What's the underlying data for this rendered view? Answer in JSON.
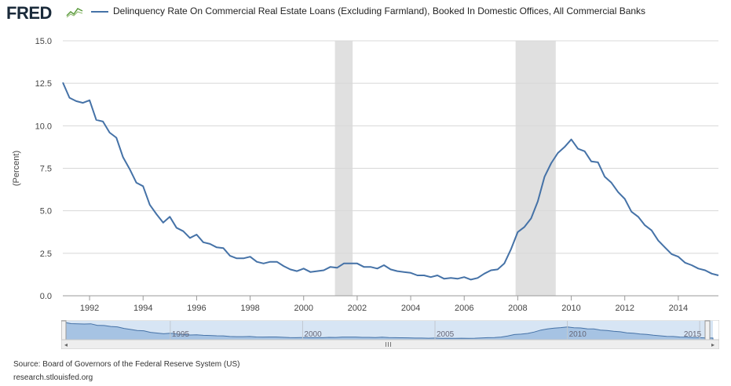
{
  "header": {
    "logo_text": "FRED",
    "legend_label": "Delinquency Rate On Commercial Real Estate Loans (Excluding Farmland), Booked In Domestic Offices, All Commercial Banks"
  },
  "footer": {
    "source": "Source: Board of Governors of the Federal Reserve System (US)",
    "site": "research.stlouisfed.org"
  },
  "colors": {
    "series": "#4572a7",
    "recession": "#e0e0e0",
    "navigator_fill": "#a6c3e3",
    "navigator_bg": "#d7e5f4"
  },
  "chart_data": {
    "type": "line",
    "ylabel": "(Percent)",
    "ylim": [
      0,
      15
    ],
    "yticks": [
      "0.0",
      "2.5",
      "5.0",
      "7.5",
      "10.0",
      "12.5",
      "15.0"
    ],
    "xlim": [
      1991.0,
      2015.5
    ],
    "xticks": [
      "1992",
      "1994",
      "1996",
      "1998",
      "2000",
      "2002",
      "2004",
      "2006",
      "2008",
      "2010",
      "2012",
      "2014"
    ],
    "grid": true,
    "recessions": [
      [
        2001.17,
        2001.83
      ],
      [
        2007.92,
        2009.42
      ]
    ],
    "series": [
      {
        "x": [
          1991.0,
          1991.25,
          1991.5,
          1991.75,
          1992.0,
          1992.25,
          1992.5,
          1992.75,
          1993.0,
          1993.25,
          1993.5,
          1993.75,
          1994.0,
          1994.25,
          1994.5,
          1994.75,
          1995.0,
          1995.25,
          1995.5,
          1995.75,
          1996.0,
          1996.25,
          1996.5,
          1996.75,
          1997.0,
          1997.25,
          1997.5,
          1997.75,
          1998.0,
          1998.25,
          1998.5,
          1998.75,
          1999.0,
          1999.25,
          1999.5,
          1999.75,
          2000.0,
          2000.25,
          2000.5,
          2000.75,
          2001.0,
          2001.25,
          2001.5,
          2001.75,
          2002.0,
          2002.25,
          2002.5,
          2002.75,
          2003.0,
          2003.25,
          2003.5,
          2003.75,
          2004.0,
          2004.25,
          2004.5,
          2004.75,
          2005.0,
          2005.25,
          2005.5,
          2005.75,
          2006.0,
          2006.25,
          2006.5,
          2006.75,
          2007.0,
          2007.25,
          2007.5,
          2007.75,
          2008.0,
          2008.25,
          2008.5,
          2008.75,
          2009.0,
          2009.25,
          2009.5,
          2009.75,
          2010.0,
          2010.25,
          2010.5,
          2010.75,
          2011.0,
          2011.25,
          2011.5,
          2011.75,
          2012.0,
          2012.25,
          2012.5,
          2012.75,
          2013.0,
          2013.25,
          2013.5,
          2013.75,
          2014.0,
          2014.25,
          2014.5,
          2014.75,
          2015.0,
          2015.25,
          2015.5
        ],
        "y": [
          12.55,
          11.65,
          11.45,
          11.35,
          11.5,
          10.35,
          10.25,
          9.6,
          9.3,
          8.15,
          7.45,
          6.65,
          6.45,
          5.35,
          4.8,
          4.3,
          4.65,
          4.0,
          3.8,
          3.4,
          3.6,
          3.15,
          3.05,
          2.85,
          2.8,
          2.35,
          2.2,
          2.2,
          2.3,
          2.0,
          1.9,
          2.0,
          2.0,
          1.75,
          1.55,
          1.45,
          1.6,
          1.4,
          1.45,
          1.5,
          1.7,
          1.65,
          1.9,
          1.9,
          1.9,
          1.7,
          1.7,
          1.6,
          1.8,
          1.55,
          1.45,
          1.4,
          1.35,
          1.2,
          1.2,
          1.1,
          1.2,
          1.0,
          1.05,
          1.0,
          1.1,
          0.95,
          1.05,
          1.3,
          1.5,
          1.55,
          1.9,
          2.75,
          3.75,
          4.05,
          4.55,
          5.55,
          7.0,
          7.8,
          8.4,
          8.75,
          9.2,
          8.65,
          8.5,
          7.9,
          7.85,
          7.0,
          6.65,
          6.1,
          5.7,
          4.95,
          4.65,
          4.15,
          3.85,
          3.25,
          2.85,
          2.45,
          2.3,
          1.95,
          1.8,
          1.6,
          1.5,
          1.3,
          1.2
        ]
      }
    ],
    "navigator": {
      "xlim": [
        1991.0,
        2015.5
      ],
      "tick_labels": [
        "1995",
        "2000",
        "2005",
        "2010",
        "2015"
      ],
      "tick_years": [
        1995,
        2000,
        2005,
        2010,
        2015
      ]
    }
  }
}
